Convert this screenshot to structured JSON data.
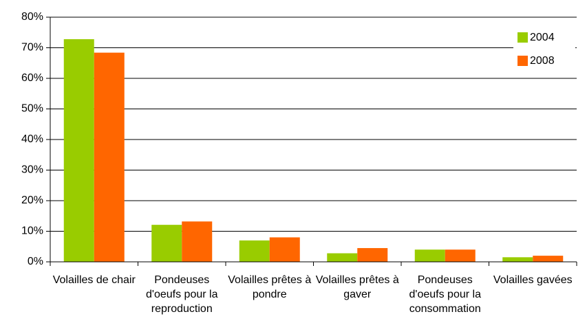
{
  "chart_data": {
    "type": "bar",
    "categories": [
      "Volailles de chair",
      "Pondeuses d'oeufs pour la reproduction",
      "Volailles prêtes à pondre",
      "Volailles prêtes à gaver",
      "Pondeuses d'oeufs pour la consommation",
      "Volailles gavées"
    ],
    "series": [
      {
        "name": "2004",
        "color": "#99cc00",
        "values": [
          72.8,
          12.1,
          7.0,
          2.8,
          4.0,
          1.5
        ]
      },
      {
        "name": "2008",
        "color": "#ff6600",
        "values": [
          68.4,
          13.2,
          8.0,
          4.5,
          4.0,
          2.0
        ]
      }
    ],
    "ylim": [
      0,
      80
    ],
    "yticks": [
      {
        "value": 0,
        "label": "0%"
      },
      {
        "value": 10,
        "label": "10%"
      },
      {
        "value": 20,
        "label": "20%"
      },
      {
        "value": 30,
        "label": "30%"
      },
      {
        "value": 40,
        "label": "40%"
      },
      {
        "value": 50,
        "label": "50%"
      },
      {
        "value": 60,
        "label": "60%"
      },
      {
        "value": 70,
        "label": "70%"
      },
      {
        "value": 80,
        "label": "80%"
      }
    ],
    "grid": true,
    "legend": "top-right"
  }
}
